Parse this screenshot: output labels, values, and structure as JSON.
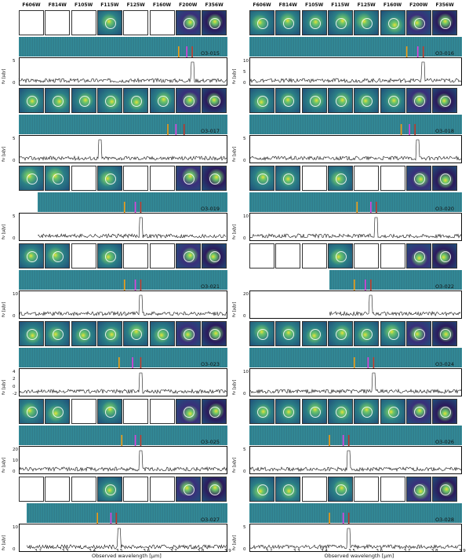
{
  "filters": [
    "F606W",
    "F814W",
    "F105W",
    "F115W",
    "F125W",
    "F160W",
    "F200W",
    "F356W"
  ],
  "y_axis_label": "fν [μJy]",
  "x_axis": {
    "title": "Observed wavelength [μm]",
    "ticks": [
      "3.2",
      "3.3",
      "3.4",
      "3.5",
      "3.6",
      "3.7",
      "3.8",
      "3.9"
    ],
    "range": [
      3.13,
      3.9
    ]
  },
  "line_colors": {
    "orange": "#f39c12",
    "magenta": "#e040e0",
    "red": "#c0392b"
  },
  "objects": [
    {
      "id": "O3-015",
      "stamps": [
        0,
        0,
        0,
        1,
        0,
        0,
        1,
        1
      ],
      "yticks": [
        "5",
        "0"
      ],
      "lines": [
        3.72,
        3.75,
        3.77
      ],
      "peak": 3.77,
      "spec_start": 3.13
    },
    {
      "id": "O3-016",
      "stamps": [
        1,
        1,
        1,
        1,
        1,
        1,
        1,
        1
      ],
      "yticks": [
        "10",
        "5",
        "0"
      ],
      "lines": [
        3.7,
        3.74,
        3.76
      ],
      "peak": 3.76,
      "spec_start": 3.13
    },
    {
      "id": "O3-017",
      "stamps": [
        1,
        1,
        1,
        1,
        1,
        1,
        1,
        1
      ],
      "yticks": [
        "5",
        "0"
      ],
      "lines": [
        3.68,
        3.71,
        3.74
      ],
      "peak": 3.43,
      "spec_start": 3.13
    },
    {
      "id": "O3-018",
      "stamps": [
        1,
        1,
        1,
        1,
        1,
        1,
        1,
        1
      ],
      "yticks": [
        "5",
        "0"
      ],
      "lines": [
        3.68,
        3.71,
        3.73
      ],
      "peak": 3.74,
      "spec_start": 3.13
    },
    {
      "id": "O3-019",
      "stamps": [
        1,
        1,
        0,
        1,
        0,
        0,
        1,
        1
      ],
      "yticks": [
        "5",
        "0"
      ],
      "lines": [
        3.52,
        3.56,
        3.58
      ],
      "peak": 3.58,
      "spec_start": 3.2
    },
    {
      "id": "O3-020",
      "stamps": [
        1,
        1,
        0,
        1,
        0,
        0,
        1,
        1
      ],
      "yticks": [
        "10",
        "0"
      ],
      "lines": [
        3.52,
        3.57,
        3.59
      ],
      "peak": 3.59,
      "spec_start": 3.13
    },
    {
      "id": "O3-021",
      "stamps": [
        1,
        1,
        0,
        1,
        0,
        0,
        1,
        1
      ],
      "yticks": [
        "10",
        "0"
      ],
      "lines": [
        3.52,
        3.56,
        3.58
      ],
      "peak": 3.58,
      "spec_start": 3.13
    },
    {
      "id": "O3-022",
      "stamps": [
        0,
        0,
        0,
        1,
        0,
        0,
        1,
        1
      ],
      "yticks": [
        "20",
        "0"
      ],
      "lines": [
        3.51,
        3.55,
        3.57
      ],
      "peak": 3.57,
      "spec_start": 3.42
    },
    {
      "id": "O3-023",
      "stamps": [
        1,
        1,
        1,
        1,
        1,
        1,
        1,
        1
      ],
      "yticks": [
        "4",
        "2",
        "0",
        "-2"
      ],
      "lines": [
        3.5,
        3.55,
        3.58
      ],
      "peak": 3.58,
      "spec_start": 3.13
    },
    {
      "id": "O3-024",
      "stamps": [
        1,
        1,
        1,
        1,
        1,
        1,
        1,
        1
      ],
      "yticks": [
        "10",
        "0"
      ],
      "lines": [
        3.51,
        3.56,
        3.58
      ],
      "peak": 3.58,
      "spec_start": 3.13
    },
    {
      "id": "O3-025",
      "stamps": [
        1,
        1,
        0,
        1,
        0,
        0,
        1,
        1
      ],
      "yticks": [
        "20",
        "10",
        "0"
      ],
      "lines": [
        3.51,
        3.56,
        3.58
      ],
      "peak": 3.58,
      "spec_start": 3.13
    },
    {
      "id": "O3-026",
      "stamps": [
        1,
        1,
        1,
        1,
        1,
        1,
        1,
        1
      ],
      "yticks": [
        "5",
        "0"
      ],
      "lines": [
        3.42,
        3.47,
        3.49
      ],
      "peak": 3.49,
      "spec_start": 3.13
    },
    {
      "id": "O3-027",
      "stamps": [
        0,
        0,
        0,
        1,
        0,
        0,
        1,
        1
      ],
      "yticks": [
        "10",
        "0"
      ],
      "lines": [
        3.42,
        3.47,
        3.49
      ],
      "peak": 3.5,
      "spec_start": 3.16
    },
    {
      "id": "O3-028",
      "stamps": [
        1,
        1,
        0,
        1,
        0,
        0,
        1,
        1
      ],
      "yticks": [
        "5",
        "0"
      ],
      "lines": [
        3.42,
        3.47,
        3.49
      ],
      "peak": 3.49,
      "spec_start": 3.13
    }
  ]
}
